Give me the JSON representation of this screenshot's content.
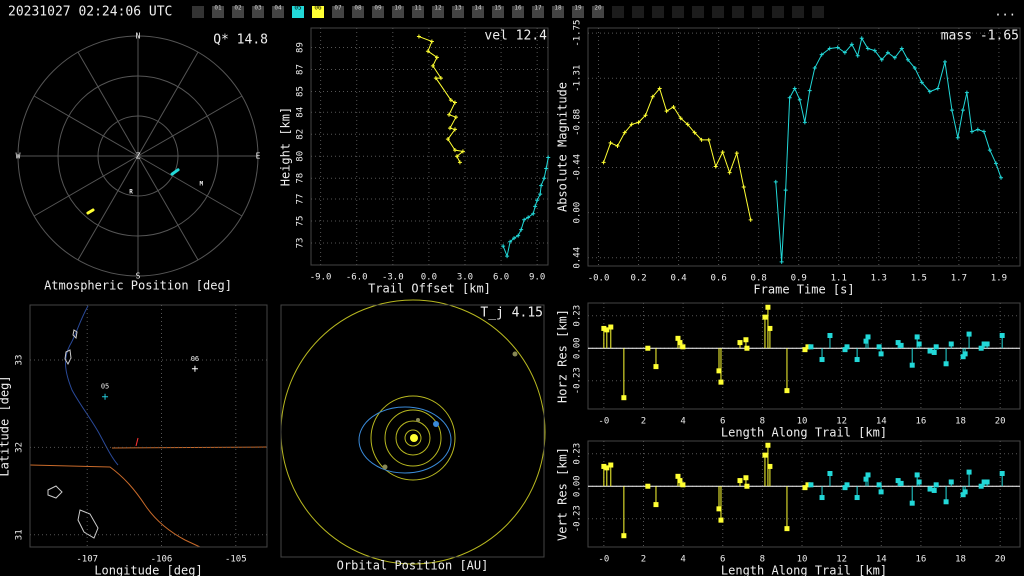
{
  "header": {
    "timestamp": "20231027 02:24:06 UTC",
    "menu": "...",
    "stations": [
      {
        "label": "01"
      },
      {
        "label": "02"
      },
      {
        "label": "03"
      },
      {
        "label": "04"
      },
      {
        "label": "05",
        "color": "#22d8d8"
      },
      {
        "label": "06",
        "color": "#ffff33"
      },
      {
        "label": "07"
      },
      {
        "label": "08"
      },
      {
        "label": "09"
      },
      {
        "label": "10"
      },
      {
        "label": "11"
      },
      {
        "label": "12"
      },
      {
        "label": "13"
      },
      {
        "label": "14"
      },
      {
        "label": "15"
      },
      {
        "label": "16"
      },
      {
        "label": "17"
      },
      {
        "label": "18"
      },
      {
        "label": "19"
      },
      {
        "label": "20"
      }
    ]
  },
  "chart_data": [
    {
      "type": "polar",
      "xlabel": "Atmospheric Position [deg]",
      "annotation": "Q* 14.8",
      "rlim": [
        0,
        90
      ],
      "rings": [
        30,
        60,
        90
      ],
      "spokes": [
        0,
        30,
        60,
        90,
        120,
        150,
        180,
        210,
        240,
        270,
        300,
        330
      ],
      "directions": [
        {
          "label": "N",
          "theta": 0
        },
        {
          "label": "E",
          "theta": 90
        },
        {
          "label": "S",
          "theta": 180
        },
        {
          "label": "W",
          "theta": 270
        }
      ],
      "center_label": "Z",
      "markers": [
        {
          "label": "R",
          "theta": 191,
          "r": 27.5
        },
        {
          "label": "M",
          "theta": 114,
          "r": 52
        }
      ],
      "series": [
        {
          "color": "#22d8d8",
          "theta": [
            118,
            109
          ],
          "values": [
            28.9,
            31.8
          ]
        },
        {
          "color": "#ffff33",
          "theta": [
            221.3,
            219.8
          ],
          "values": [
            56.9,
            52.7
          ]
        }
      ]
    },
    {
      "type": "line",
      "annotation": "vel 12.4",
      "xlabel": "Trail Offset [km]",
      "ylabel": "Height [km]",
      "grid": true,
      "xlim": [
        -9.8,
        9.9
      ],
      "ylim": [
        71.2,
        90.6
      ],
      "xticks": [
        {
          "value": -9,
          "label": "-9.0"
        },
        {
          "value": -6,
          "label": "-6.0"
        },
        {
          "value": -3,
          "label": "-3.0"
        },
        {
          "value": 0,
          "label": "0.0"
        },
        {
          "value": 3,
          "label": "3.0"
        },
        {
          "value": 6,
          "label": "6.0"
        },
        {
          "value": 9,
          "label": "9.0"
        }
      ],
      "yticks": [
        {
          "value": 73.0,
          "label": "73"
        },
        {
          "value": 74.8,
          "label": "75"
        },
        {
          "value": 76.6,
          "label": "77"
        },
        {
          "value": 78.3,
          "label": "78"
        },
        {
          "value": 80.1,
          "label": "80"
        },
        {
          "value": 81.9,
          "label": "82"
        },
        {
          "value": 83.7,
          "label": "84"
        },
        {
          "value": 85.4,
          "label": "85"
        },
        {
          "value": 87.2,
          "label": "87"
        },
        {
          "value": 89.0,
          "label": "89"
        }
      ],
      "series": [
        {
          "color": "#ffff33",
          "x": [
            -0.83,
            0.25,
            -0.08,
            0.67,
            0.33,
            1.0,
            0.58,
            1.83,
            2.17,
            1.67,
            2.25,
            1.75,
            2.17,
            1.58,
            2.17,
            2.83,
            2.33,
            2.58
          ],
          "values": [
            89.9,
            89.5,
            88.7,
            88.2,
            87.5,
            86.5,
            86.5,
            84.7,
            84.5,
            83.5,
            83.3,
            82.4,
            82.3,
            81.5,
            80.6,
            80.5,
            80.1,
            79.6
          ]
        },
        {
          "color": "#22d8d8",
          "x": [
            6.17,
            6.5,
            6.75,
            7.08,
            7.42,
            7.67,
            7.92,
            8.25,
            8.67,
            8.83,
            9.0,
            9.25,
            9.33,
            9.58,
            9.75,
            9.92
          ],
          "values": [
            72.75,
            71.93,
            73.1,
            73.4,
            73.6,
            74.1,
            74.9,
            75.1,
            75.4,
            76.0,
            76.5,
            77.0,
            77.7,
            78.3,
            79.1,
            80.0
          ]
        }
      ]
    },
    {
      "type": "line",
      "annotation": "mass -1.65",
      "xlabel": "Frame Time [s]",
      "ylabel": "Absolute Magnitude",
      "grid": true,
      "xlim": [
        -0.05,
        2.0
      ],
      "ylim": [
        0.52,
        -1.8
      ],
      "xticks": [
        {
          "value": 0,
          "label": "-0.0"
        },
        {
          "value": 0.19,
          "label": "0.2"
        },
        {
          "value": 0.38,
          "label": "0.4"
        },
        {
          "value": 0.57,
          "label": "0.6"
        },
        {
          "value": 0.76,
          "label": "0.8"
        },
        {
          "value": 0.95,
          "label": "0.9"
        },
        {
          "value": 1.14,
          "label": "1.1"
        },
        {
          "value": 1.33,
          "label": "1.3"
        },
        {
          "value": 1.52,
          "label": "1.5"
        },
        {
          "value": 1.71,
          "label": "1.7"
        },
        {
          "value": 1.9,
          "label": "1.9"
        }
      ],
      "yticks": [
        -1.75,
        -1.31,
        -0.88,
        -0.44,
        {
          "value": 0,
          "label": "0.00"
        },
        0.44
      ],
      "series": [
        {
          "color": "#ffff33",
          "x": [
            0.024,
            0.057,
            0.09,
            0.124,
            0.157,
            0.19,
            0.223,
            0.257,
            0.29,
            0.323,
            0.356,
            0.39,
            0.423,
            0.456,
            0.489,
            0.523,
            0.556,
            0.589,
            0.622,
            0.656,
            0.689,
            0.722
          ],
          "values": [
            -0.49,
            -0.68,
            -0.65,
            -0.78,
            -0.86,
            -0.88,
            -0.95,
            -1.13,
            -1.21,
            -0.99,
            -1.03,
            -0.92,
            -0.86,
            -0.78,
            -0.71,
            -0.71,
            -0.45,
            -0.59,
            -0.39,
            -0.58,
            -0.25,
            0.07
          ]
        },
        {
          "color": "#22d8d8",
          "x": [
            0.841,
            0.869,
            0.888,
            0.907,
            0.931,
            0.955,
            0.979,
            1.002,
            1.026,
            1.059,
            1.097,
            1.135,
            1.169,
            1.202,
            1.23,
            1.249,
            1.278,
            1.311,
            1.344,
            1.373,
            1.406,
            1.439,
            1.468,
            1.501,
            1.534,
            1.572,
            1.61,
            1.644,
            1.677,
            1.705,
            1.729,
            1.748,
            1.772,
            1.8,
            1.829,
            1.857,
            1.886,
            1.91
          ],
          "values": [
            -0.3,
            0.48,
            -0.22,
            -1.12,
            -1.21,
            -1.1,
            -0.88,
            -1.19,
            -1.41,
            -1.54,
            -1.6,
            -1.61,
            -1.56,
            -1.64,
            -1.53,
            -1.7,
            -1.6,
            -1.58,
            -1.49,
            -1.56,
            -1.51,
            -1.6,
            -1.49,
            -1.41,
            -1.27,
            -1.18,
            -1.21,
            -1.47,
            -1.0,
            -0.73,
            -1.0,
            -1.17,
            -0.79,
            -0.81,
            -0.79,
            -0.61,
            -0.48,
            -0.34
          ]
        }
      ]
    },
    {
      "type": "map",
      "xlabel": "Longitude [deg]",
      "ylabel": "Latitude [deg]",
      "grid": true,
      "xlim": [
        -107.77,
        -104.58
      ],
      "ylim": [
        30.86,
        33.63
      ],
      "xticks": [
        -107,
        -106,
        -105
      ],
      "yticks": [
        31,
        32,
        33
      ],
      "stations": [
        {
          "label": "06",
          "x": -105.55,
          "y": 32.9,
          "color": "#ffffff"
        },
        {
          "label": "05",
          "x": -106.76,
          "y": 32.58,
          "color": "#22c8d8"
        }
      ]
    },
    {
      "type": "orbit",
      "annotation": "T_j 4.15",
      "xlabel": "Orbital Position [AU]"
    },
    {
      "type": "stem",
      "xlabel": "Length Along Trail [km]",
      "ylabel": "Horz Res [km]",
      "grid": true,
      "zero_line": true,
      "xlim": [
        -0.8,
        21
      ],
      "ylim": [
        -0.43,
        0.32
      ],
      "xticks": [
        {
          "value": 0,
          "label": "-0"
        },
        2,
        4,
        6,
        8,
        10,
        12,
        14,
        16,
        18,
        20
      ],
      "yticks": [
        -0.23,
        {
          "value": 0,
          "label": "0.00"
        },
        0.23
      ],
      "series": [
        {
          "color": "#ffff33",
          "x": [
            0.0,
            0.15,
            0.35,
            1.01,
            2.22,
            2.63,
            3.74,
            3.84,
            3.99,
            5.81,
            5.91,
            6.87,
            7.17,
            7.22,
            8.13,
            8.28,
            8.38,
            9.24,
            10.15,
            10.3
          ],
          "values": [
            0.14,
            0.13,
            0.15,
            -0.35,
            0.0,
            -0.13,
            0.07,
            0.04,
            0.01,
            -0.16,
            -0.24,
            0.04,
            0.06,
            0.0,
            0.22,
            0.29,
            0.14,
            -0.3,
            -0.01,
            0.01
          ]
        },
        {
          "color": "#22d8d8",
          "x": [
            10.45,
            11.01,
            11.41,
            12.17,
            12.27,
            12.78,
            13.23,
            13.33,
            13.89,
            13.99,
            14.85,
            15.0,
            15.56,
            15.81,
            15.91,
            16.46,
            16.67,
            16.77,
            17.27,
            17.53,
            18.13,
            18.23,
            18.43,
            19.04,
            19.19,
            19.34,
            20.1
          ],
          "values": [
            0.01,
            -0.08,
            0.09,
            -0.01,
            0.01,
            -0.08,
            0.05,
            0.08,
            0.01,
            -0.04,
            0.04,
            0.02,
            -0.12,
            0.08,
            0.03,
            -0.02,
            -0.03,
            0.01,
            -0.11,
            0.03,
            -0.06,
            -0.04,
            0.1,
            0.0,
            0.03,
            0.03,
            0.09
          ]
        }
      ]
    },
    {
      "type": "stem",
      "xlabel": "Length Along Trail [km]",
      "ylabel": "Vert Res [km]",
      "grid": true,
      "zero_line": true,
      "xlim": [
        -0.8,
        21
      ],
      "ylim": [
        -0.43,
        0.32
      ],
      "xticks": [
        {
          "value": 0,
          "label": "-0"
        },
        2,
        4,
        6,
        8,
        10,
        12,
        14,
        16,
        18,
        20
      ],
      "yticks": [
        -0.23,
        {
          "value": 0,
          "label": "0.00"
        },
        0.23
      ],
      "series": [
        {
          "color": "#ffff33",
          "x": [
            0.0,
            0.15,
            0.35,
            1.01,
            2.22,
            2.63,
            3.74,
            3.84,
            3.99,
            5.81,
            5.91,
            6.87,
            7.17,
            7.22,
            8.13,
            8.28,
            8.38,
            9.24,
            10.15,
            10.3
          ],
          "values": [
            0.14,
            0.13,
            0.15,
            -0.35,
            0.0,
            -0.13,
            0.07,
            0.04,
            0.01,
            -0.16,
            -0.24,
            0.04,
            0.06,
            0.0,
            0.22,
            0.29,
            0.14,
            -0.3,
            -0.01,
            0.01
          ]
        },
        {
          "color": "#22d8d8",
          "x": [
            10.45,
            11.01,
            11.41,
            12.17,
            12.27,
            12.78,
            13.23,
            13.33,
            13.89,
            13.99,
            14.85,
            15.0,
            15.56,
            15.81,
            15.91,
            16.46,
            16.67,
            16.77,
            17.27,
            17.53,
            18.13,
            18.23,
            18.43,
            19.04,
            19.19,
            19.34,
            20.1
          ],
          "values": [
            0.01,
            -0.08,
            0.09,
            -0.01,
            0.01,
            -0.08,
            0.05,
            0.08,
            0.01,
            -0.04,
            0.04,
            0.02,
            -0.12,
            0.08,
            0.03,
            -0.02,
            -0.03,
            0.01,
            -0.11,
            0.03,
            -0.06,
            -0.04,
            0.1,
            0.0,
            0.03,
            0.03,
            0.09
          ]
        }
      ]
    }
  ]
}
